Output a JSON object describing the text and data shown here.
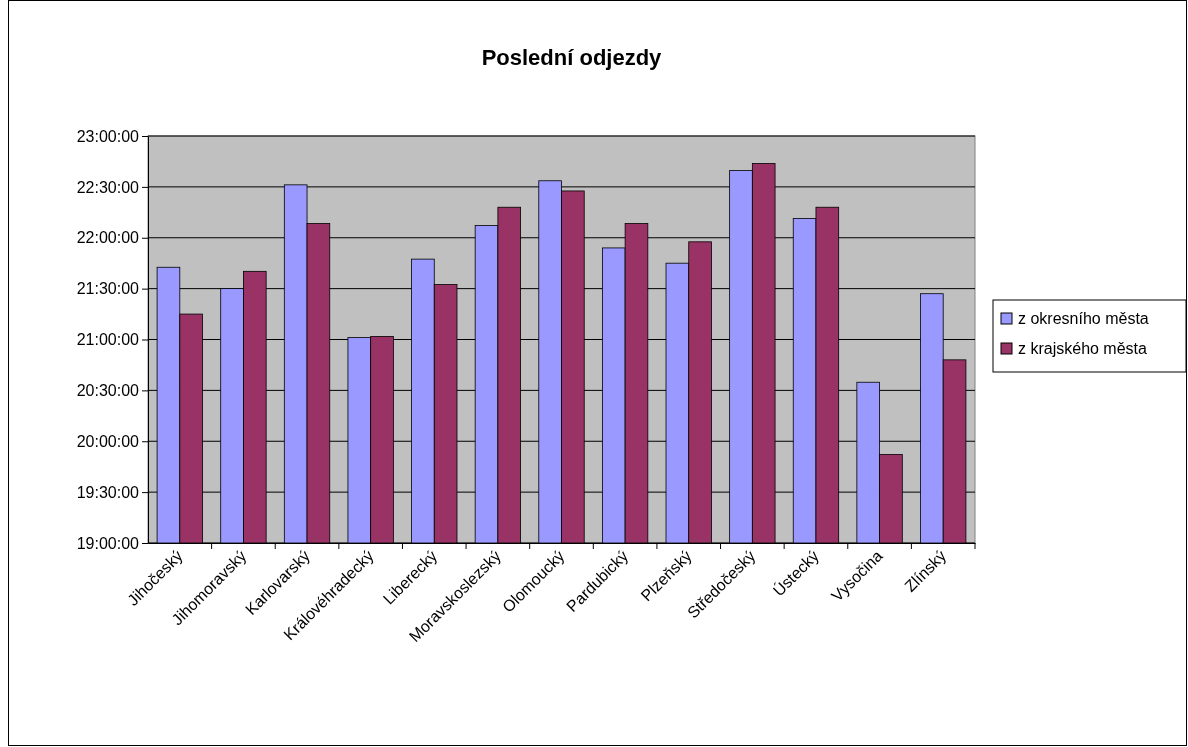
{
  "chart_data": {
    "type": "bar",
    "title": "Poslední odjezdy",
    "categories": [
      "Jihočeský",
      "Jihomoravský",
      "Karlovarský",
      "Královéhradecký",
      "Liberecký",
      "Moravskoslezský",
      "Olomoucký",
      "Pardubický",
      "Plzeňský",
      "Středočeský",
      "Ústecký",
      "Vysočina",
      "Zlínský"
    ],
    "series": [
      {
        "name": "z okresního města",
        "color": "#9999ff",
        "values": [
          21.71,
          21.5,
          22.52,
          21.02,
          21.79,
          22.12,
          22.56,
          21.9,
          21.75,
          22.66,
          22.19,
          20.58,
          21.45
        ]
      },
      {
        "name": "z krajského města",
        "color": "#993366",
        "values": [
          21.25,
          21.67,
          22.14,
          21.03,
          21.54,
          22.3,
          22.46,
          22.14,
          21.96,
          22.73,
          22.3,
          19.87,
          20.8
        ]
      }
    ],
    "ylim": [
      19,
      23
    ],
    "yticks": [
      {
        "value": 19,
        "label": "19:00:00"
      },
      {
        "value": 19.5,
        "label": "19:30:00"
      },
      {
        "value": 20,
        "label": "20:00:00"
      },
      {
        "value": 20.5,
        "label": "20:30:00"
      },
      {
        "value": 21,
        "label": "21:00:00"
      },
      {
        "value": 21.5,
        "label": "21:30:00"
      },
      {
        "value": 22,
        "label": "22:00:00"
      },
      {
        "value": 22.5,
        "label": "22:30:00"
      },
      {
        "value": 23,
        "label": "23:00:00"
      }
    ],
    "grid": "y",
    "legend": "right"
  }
}
